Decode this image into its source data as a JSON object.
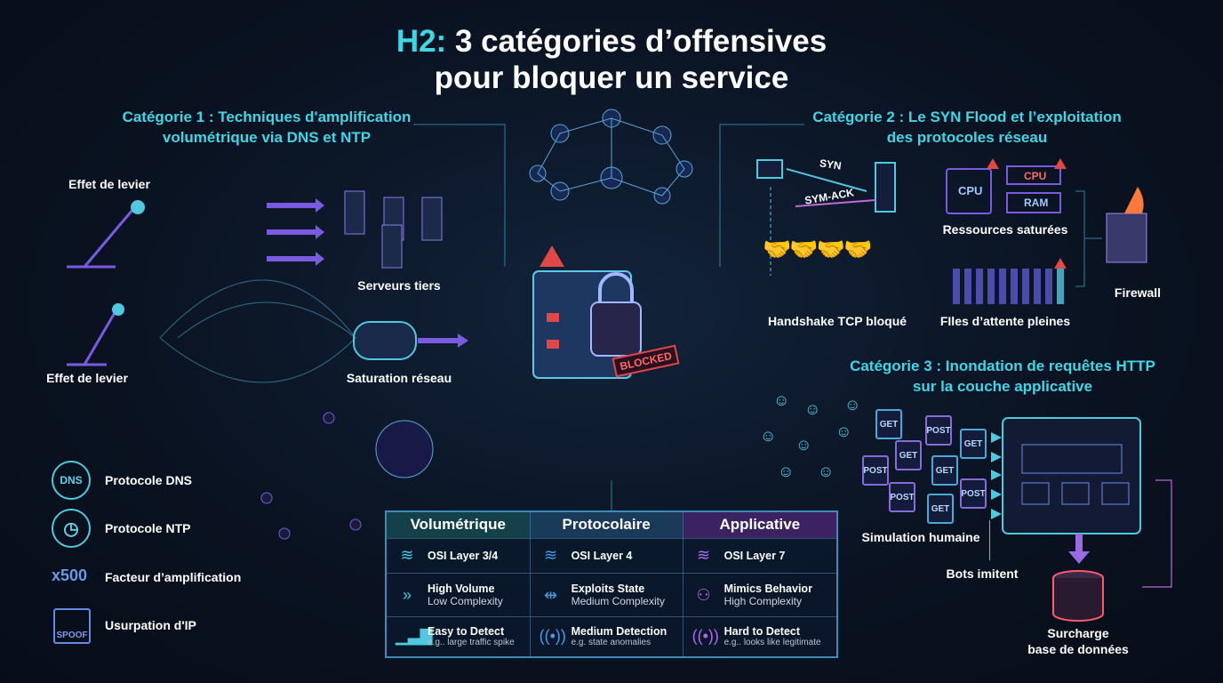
{
  "title": {
    "prefix": "H2:",
    "line1": "3 catégories d’offensives",
    "line2": "pour bloquer un service"
  },
  "categories": {
    "cat1": {
      "line1": "Catégorie 1 : Techniques d'amplification",
      "line2": "volumétrique via DNS et NTP"
    },
    "cat2": {
      "line1": "Catégorie 2 : Le SYN Flood et l’exploitation",
      "line2": "des protocoles réseau"
    },
    "cat3": {
      "line1": "Catégorie 3 : Inondation de requêtes HTTP",
      "line2": "sur la couche applicative"
    }
  },
  "cat1_labels": {
    "lever_top": "Effet de levier",
    "lever_bottom": "Effet de levier",
    "servers": "Serveurs tiers",
    "saturation": "Saturation réseau"
  },
  "center": {
    "blocked": "BLOCKED"
  },
  "legend": [
    {
      "icon": "DNS",
      "label": "Protocole DNS"
    },
    {
      "icon": "clock",
      "label": "Protocole NTP"
    },
    {
      "icon": "x500",
      "label": "Facteur d’amplification"
    },
    {
      "icon": "SPOOF",
      "label": "Usurpation d'IP"
    }
  ],
  "table": {
    "headers": [
      "Volumétrique",
      "Protocolaire",
      "Applicative"
    ],
    "rows": [
      [
        {
          "h": "OSI Layer 3/4"
        },
        {
          "h": "OSI Layer 4"
        },
        {
          "h": "OSI Layer 7"
        }
      ],
      [
        {
          "h": "High Volume",
          "s": "Low Complexity"
        },
        {
          "h": "Exploits State",
          "s": "Medium Complexity"
        },
        {
          "h": "Mimics Behavior",
          "s": "High Complexity"
        }
      ],
      [
        {
          "h": "Easy to Detect",
          "s": "e.g.. large traffic spike"
        },
        {
          "h": "Medium Detection",
          "s": "e.g. state anomalies"
        },
        {
          "h": "Hard to Detect",
          "s": "e.g.. looks like legitimate"
        }
      ]
    ]
  },
  "cat2_labels": {
    "syn": "SYN",
    "synack": "SYM-ACK",
    "handshake": "Handshake TCP bloqué",
    "cpu": "CPU",
    "cpu2": "CPU",
    "ram": "RAM",
    "resources": "Ressources saturées",
    "queues": "FIles d’attente pleines",
    "firewall": "Firewall"
  },
  "cat3_labels": {
    "requests": [
      "GET",
      "POST",
      "GET",
      "POST",
      "GET",
      "GET",
      "POST",
      "POST",
      "GET"
    ],
    "simulation": "Simulation humaine",
    "bots": "Bots imitent",
    "db_line1": "Surcharge",
    "db_line2": "base de données"
  },
  "colors": {
    "cyan": "#3fd6e6",
    "purple": "#9b6ae0",
    "red": "#e04848",
    "background": "#0a1322"
  }
}
